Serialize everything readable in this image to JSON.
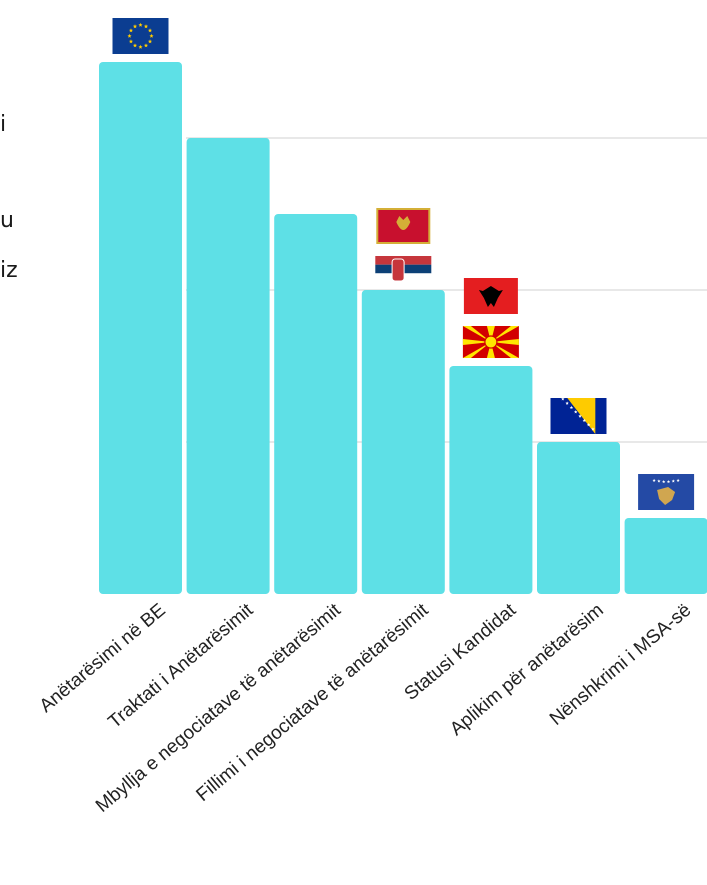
{
  "side_text": [
    "i",
    "u",
    "iz"
  ],
  "chart_data": {
    "type": "bar",
    "categories": [
      "Anëtarësimi në BE",
      "Traktati i Anëtarësimit",
      "Mbyllja e negociatave të anëtarësimit",
      "Fillimi i negociatave të anëtarësimit",
      "Statusi Kandidat",
      "Aplikim për anëtarësim",
      "Nënshkrimi i MSA-së"
    ],
    "values": [
      7,
      6,
      5,
      4,
      3,
      2,
      1
    ],
    "ylim": [
      0,
      7
    ],
    "grid": true,
    "flags": [
      [
        "eu-flag"
      ],
      [],
      [],
      [
        "montenegro-flag",
        "serbia-flag"
      ],
      [
        "albania-flag",
        "north-macedonia-flag"
      ],
      [
        "bosnia-flag"
      ],
      [
        "kosovo-flag"
      ]
    ]
  },
  "colors": {
    "bar": "#5ee0e6",
    "grid": "#d0d0d0",
    "text": "#222222"
  }
}
